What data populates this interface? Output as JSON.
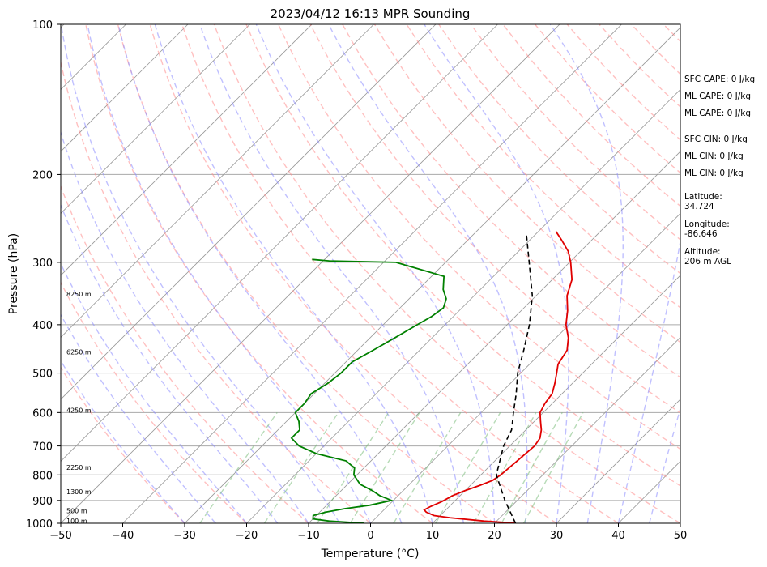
{
  "chart_data": {
    "type": "line",
    "title": "2023/04/12 16:13 MPR Sounding",
    "xlabel": "Temperature (°C)",
    "ylabel": "Pressure (hPa)",
    "xlim": [
      -50,
      50
    ],
    "ylim": [
      1000,
      100
    ],
    "y_scale": "log",
    "x_ticks": [
      "−50",
      "−40",
      "−30",
      "−20",
      "−10",
      "0",
      "10",
      "20",
      "30",
      "40",
      "50"
    ],
    "y_ticks": [
      "100",
      "200",
      "300",
      "400",
      "500",
      "600",
      "700",
      "800",
      "900",
      "1000"
    ],
    "grid": true,
    "series": [
      {
        "color": "#e00000",
        "values": [
          [
            1000,
            23.4
          ],
          [
            990,
            18
          ],
          [
            975,
            12
          ],
          [
            965,
            9
          ],
          [
            950,
            7.2
          ],
          [
            940,
            6.5
          ],
          [
            925,
            7
          ],
          [
            905,
            8
          ],
          [
            880,
            8.8
          ],
          [
            860,
            10
          ],
          [
            840,
            11.5
          ],
          [
            820,
            12.8
          ],
          [
            800,
            13.2
          ],
          [
            775,
            13.4
          ],
          [
            750,
            13.6
          ],
          [
            725,
            13.8
          ],
          [
            700,
            14
          ],
          [
            675,
            13.6
          ],
          [
            650,
            12.5
          ],
          [
            625,
            11
          ],
          [
            600,
            9.5
          ],
          [
            575,
            8.8
          ],
          [
            550,
            8.4
          ],
          [
            525,
            7.2
          ],
          [
            500,
            5.8
          ],
          [
            480,
            4.6
          ],
          [
            450,
            3.8
          ],
          [
            425,
            2
          ],
          [
            400,
            -0.5
          ],
          [
            375,
            -2.5
          ],
          [
            350,
            -5
          ],
          [
            325,
            -6.8
          ],
          [
            300,
            -9.8
          ],
          [
            285,
            -12
          ],
          [
            270,
            -15
          ],
          [
            260,
            -17.2
          ]
        ]
      },
      {
        "color": "#008000",
        "values": [
          [
            1000,
            -1
          ],
          [
            990,
            -7
          ],
          [
            980,
            -10
          ],
          [
            965,
            -10.5
          ],
          [
            950,
            -9
          ],
          [
            935,
            -6.5
          ],
          [
            920,
            -3
          ],
          [
            900,
            -0.3
          ],
          [
            880,
            -3
          ],
          [
            860,
            -5
          ],
          [
            835,
            -8
          ],
          [
            800,
            -10.5
          ],
          [
            775,
            -11.5
          ],
          [
            750,
            -14
          ],
          [
            725,
            -20
          ],
          [
            700,
            -24
          ],
          [
            675,
            -26.5
          ],
          [
            650,
            -26.5
          ],
          [
            625,
            -28
          ],
          [
            600,
            -30
          ],
          [
            575,
            -30
          ],
          [
            550,
            -30.5
          ],
          [
            525,
            -29.5
          ],
          [
            500,
            -29
          ],
          [
            475,
            -29
          ],
          [
            450,
            -27.5
          ],
          [
            425,
            -26
          ],
          [
            400,
            -24.5
          ],
          [
            385,
            -23.5
          ],
          [
            370,
            -23
          ],
          [
            355,
            -24
          ],
          [
            340,
            -26
          ],
          [
            320,
            -28
          ],
          [
            300,
            -38
          ],
          [
            298,
            -49
          ],
          [
            296,
            -52
          ]
        ]
      },
      {
        "color": "#000000",
        "dashed": true,
        "values": [
          [
            1000,
            23.4
          ],
          [
            900,
            18
          ],
          [
            800,
            12.5
          ],
          [
            700,
            9
          ],
          [
            650,
            7.7
          ],
          [
            600,
            5.2
          ],
          [
            550,
            2.6
          ],
          [
            500,
            -0.5
          ],
          [
            450,
            -3.2
          ],
          [
            400,
            -6.4
          ],
          [
            350,
            -10.6
          ],
          [
            300,
            -16.5
          ],
          [
            262,
            -21.7
          ]
        ]
      }
    ],
    "height_labels": [
      {
        "label": "100 m",
        "p": 988
      },
      {
        "label": "500 m",
        "p": 943
      },
      {
        "label": "1300 m",
        "p": 864
      },
      {
        "label": "2250 m",
        "p": 773
      },
      {
        "label": "4250 m",
        "p": 594
      },
      {
        "label": "6250 m",
        "p": 454
      },
      {
        "label": "8250 m",
        "p": 347
      }
    ],
    "background": {
      "isotherm_color": "#999999",
      "dry_adiabat_color": "#ff8c8c",
      "moist_adiabat_color": "#8c8cff",
      "mixing_ratio_color": "#6fb86f"
    }
  },
  "side_panel": {
    "sfc_cape": "SFC CAPE: 0 J/kg",
    "ml_cape_1": "ML CAPE: 0 J/kg",
    "ml_cape_2": "ML CAPE: 0 J/kg",
    "sfc_cin": "SFC CIN: 0 J/kg",
    "ml_cin_1": "ML CIN: 0 J/kg",
    "ml_cin_2": "ML CIN: 0 J/kg",
    "latitude_label": "Latitude:",
    "latitude_value": "34.724",
    "longitude_label": "Longitude:",
    "longitude_value": "-86.646",
    "altitude_label": "Altitude:",
    "altitude_value": "206 m AGL"
  }
}
